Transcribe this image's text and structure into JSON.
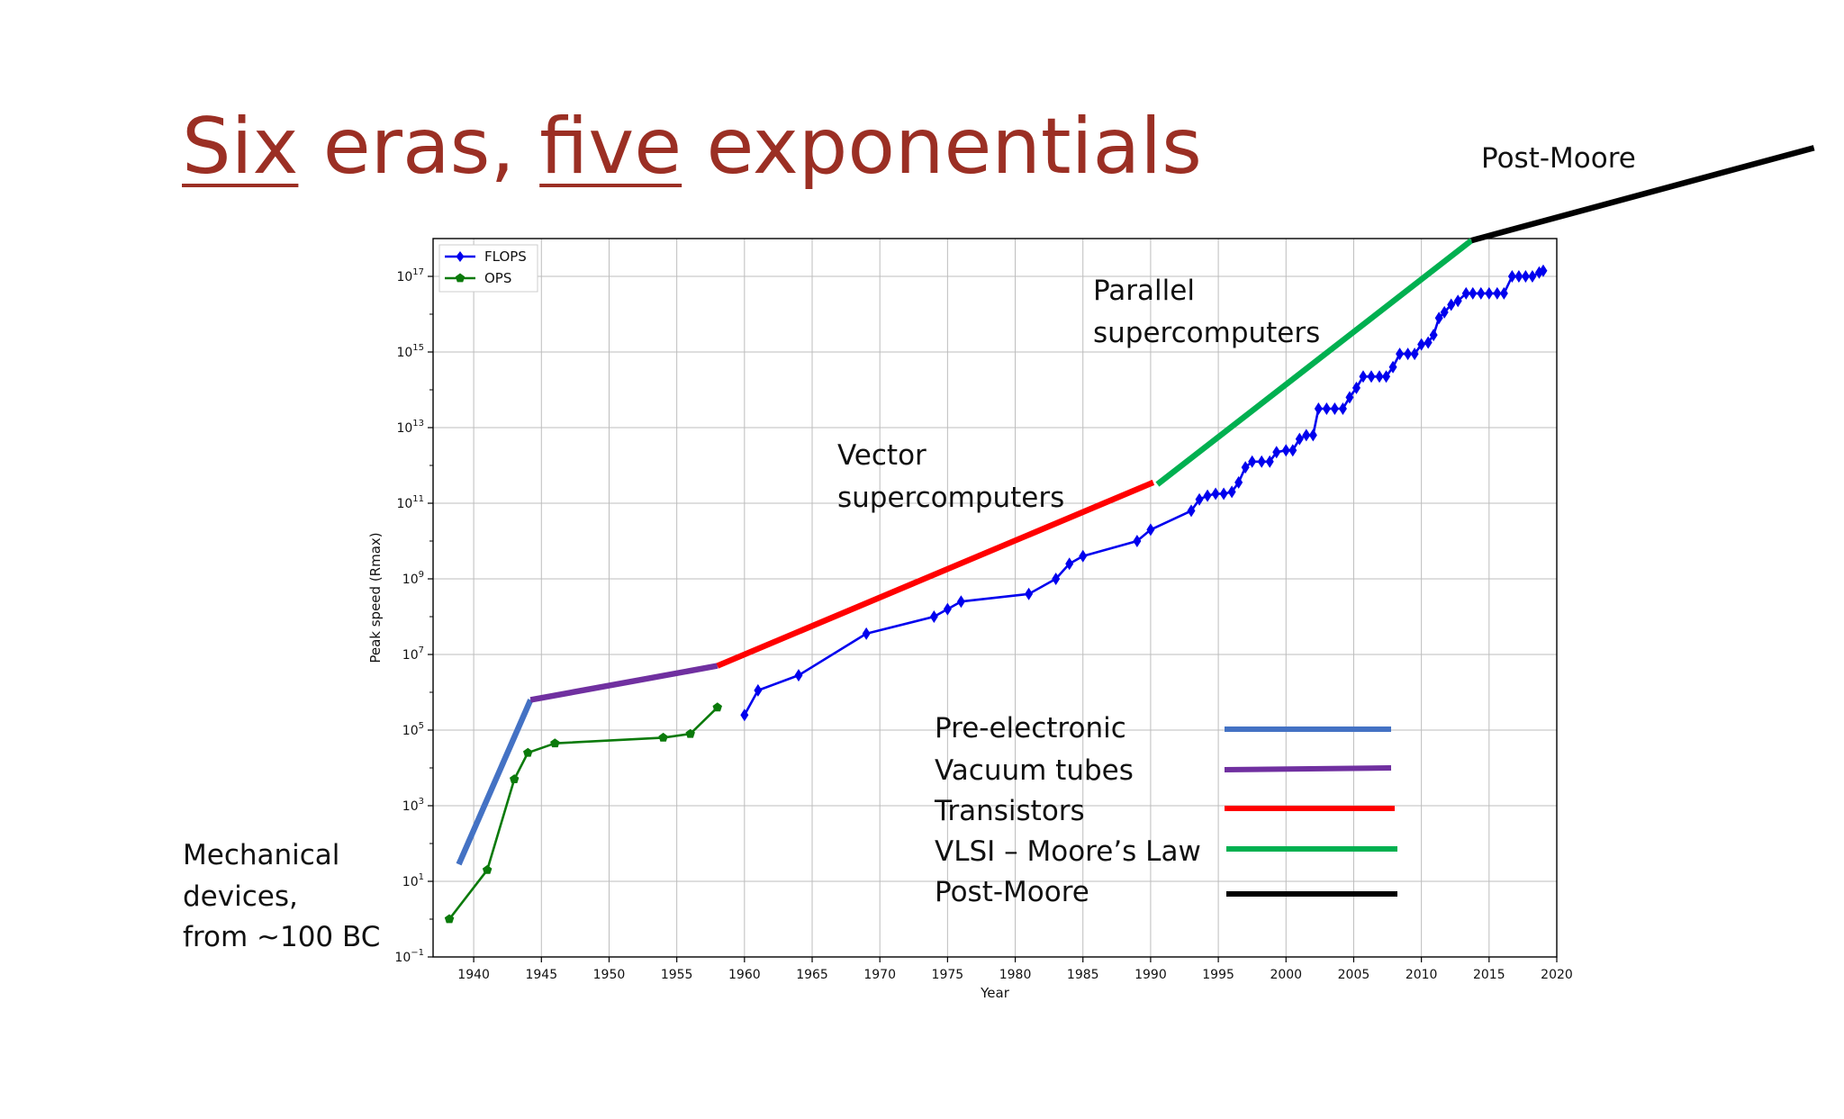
{
  "slide": {
    "title": "Six eras, five exponentials",
    "title_underlined_words": [
      "Six",
      "five"
    ],
    "title_color": "#9b2f24"
  },
  "annotations": {
    "post_moore": "Post-Moore",
    "parallel_line1": "Parallel",
    "parallel_line2": "supercomputers",
    "vector_line1": "Vector",
    "vector_line2": "supercomputers",
    "mechanical_line1": "Mechanical",
    "mechanical_line2": "devices,",
    "mechanical_line3": "from ~100 BC"
  },
  "era_legend": [
    {
      "label": "Pre-electronic",
      "color": "#4472c4"
    },
    {
      "label": "Vacuum tubes",
      "color": "#7030a0"
    },
    {
      "label": "Transistors",
      "color": "#ff0000"
    },
    {
      "label": "VLSI – Moore’s Law",
      "color": "#00b050"
    },
    {
      "label": "Post-Moore",
      "color": "#000000"
    }
  ],
  "chart_data": {
    "type": "line",
    "xlabel": "Year",
    "ylabel": "Peak speed (Rmax)",
    "yscale": "log",
    "xlim": [
      1937,
      2020
    ],
    "ylim_log10": [
      -1,
      18
    ],
    "x_ticks": [
      1940,
      1945,
      1950,
      1955,
      1960,
      1965,
      1970,
      1975,
      1980,
      1985,
      1990,
      1995,
      2000,
      2005,
      2010,
      2015,
      2020
    ],
    "y_ticks": [
      {
        "exp": -1,
        "base": "10",
        "sup": "−1"
      },
      {
        "exp": 1,
        "base": "10",
        "sup": "1"
      },
      {
        "exp": 3,
        "base": "10",
        "sup": "3"
      },
      {
        "exp": 5,
        "base": "10",
        "sup": "5"
      },
      {
        "exp": 7,
        "base": "10",
        "sup": "7"
      },
      {
        "exp": 9,
        "base": "10",
        "sup": "9"
      },
      {
        "exp": 11,
        "base": "10",
        "sup": "11"
      },
      {
        "exp": 13,
        "base": "10",
        "sup": "13"
      },
      {
        "exp": 15,
        "base": "10",
        "sup": "15"
      },
      {
        "exp": 17,
        "base": "10",
        "sup": "17"
      }
    ],
    "grid": true,
    "legend_position": "top-left",
    "series": [
      {
        "name": "FLOPS",
        "color": "#0000ee",
        "marker": "diamond",
        "log10_values": [
          [
            1960,
            5.4
          ],
          [
            1961,
            6.05
          ],
          [
            1964,
            6.45
          ],
          [
            1969,
            7.55
          ],
          [
            1974,
            8.0
          ],
          [
            1975,
            8.2
          ],
          [
            1976,
            8.4
          ],
          [
            1981,
            8.6
          ],
          [
            1983,
            9.0
          ],
          [
            1984,
            9.4
          ],
          [
            1985,
            9.6
          ],
          [
            1989,
            10.0
          ],
          [
            1990,
            10.3
          ],
          [
            1993,
            10.8
          ],
          [
            1993.6,
            11.1
          ],
          [
            1994.2,
            11.2
          ],
          [
            1994.8,
            11.25
          ],
          [
            1995.4,
            11.25
          ],
          [
            1996,
            11.3
          ],
          [
            1996.5,
            11.55
          ],
          [
            1997,
            11.95
          ],
          [
            1997.5,
            12.1
          ],
          [
            1998.2,
            12.1
          ],
          [
            1998.8,
            12.1
          ],
          [
            1999.3,
            12.35
          ],
          [
            2000,
            12.4
          ],
          [
            2000.5,
            12.4
          ],
          [
            2001,
            12.7
          ],
          [
            2001.5,
            12.8
          ],
          [
            2002,
            12.8
          ],
          [
            2002.4,
            13.5
          ],
          [
            2003,
            13.5
          ],
          [
            2003.6,
            13.5
          ],
          [
            2004.2,
            13.5
          ],
          [
            2004.7,
            13.8
          ],
          [
            2005.2,
            14.05
          ],
          [
            2005.7,
            14.35
          ],
          [
            2006.3,
            14.35
          ],
          [
            2006.9,
            14.35
          ],
          [
            2007.4,
            14.35
          ],
          [
            2007.9,
            14.6
          ],
          [
            2008.4,
            14.95
          ],
          [
            2009,
            14.95
          ],
          [
            2009.5,
            14.95
          ],
          [
            2010,
            15.2
          ],
          [
            2010.5,
            15.25
          ],
          [
            2010.9,
            15.45
          ],
          [
            2011.3,
            15.9
          ],
          [
            2011.7,
            16.05
          ],
          [
            2012.2,
            16.25
          ],
          [
            2012.7,
            16.35
          ],
          [
            2013.3,
            16.55
          ],
          [
            2013.8,
            16.55
          ],
          [
            2014.4,
            16.55
          ],
          [
            2015,
            16.55
          ],
          [
            2015.6,
            16.55
          ],
          [
            2016.1,
            16.55
          ],
          [
            2016.7,
            17.0
          ],
          [
            2017.2,
            17.0
          ],
          [
            2017.7,
            17.0
          ],
          [
            2018.2,
            17.0
          ],
          [
            2018.7,
            17.1
          ],
          [
            2019,
            17.15
          ]
        ]
      },
      {
        "name": "OPS",
        "color": "#0b7a0b",
        "marker": "pentagon",
        "log10_values": [
          [
            1938.2,
            0.0
          ],
          [
            1941,
            1.3
          ],
          [
            1943,
            3.7
          ],
          [
            1944,
            4.4
          ],
          [
            1946,
            4.65
          ],
          [
            1954,
            4.8
          ],
          [
            1956,
            4.9
          ],
          [
            1958,
            5.6
          ]
        ]
      }
    ],
    "era_trend_lines": [
      {
        "era": "Pre-electronic",
        "color": "#4472c4",
        "points": [
          [
            1938.9,
            1.45
          ],
          [
            1944.2,
            5.8
          ]
        ]
      },
      {
        "era": "Vacuum tubes",
        "color": "#7030a0",
        "points": [
          [
            1944.2,
            5.8
          ],
          [
            1958,
            6.7
          ]
        ]
      },
      {
        "era": "Transistors",
        "color": "#ff0000",
        "points": [
          [
            1958,
            6.7
          ],
          [
            1990.2,
            11.55
          ]
        ]
      },
      {
        "era": "VLSI – Moore’s Law",
        "color": "#00b050",
        "points": [
          [
            1990.5,
            11.5
          ],
          [
            2013.7,
            17.95
          ]
        ]
      },
      {
        "era": "Post-Moore",
        "color": "#000000",
        "points": [
          [
            2013.7,
            17.95
          ],
          [
            2039,
            20.4
          ]
        ]
      }
    ]
  }
}
